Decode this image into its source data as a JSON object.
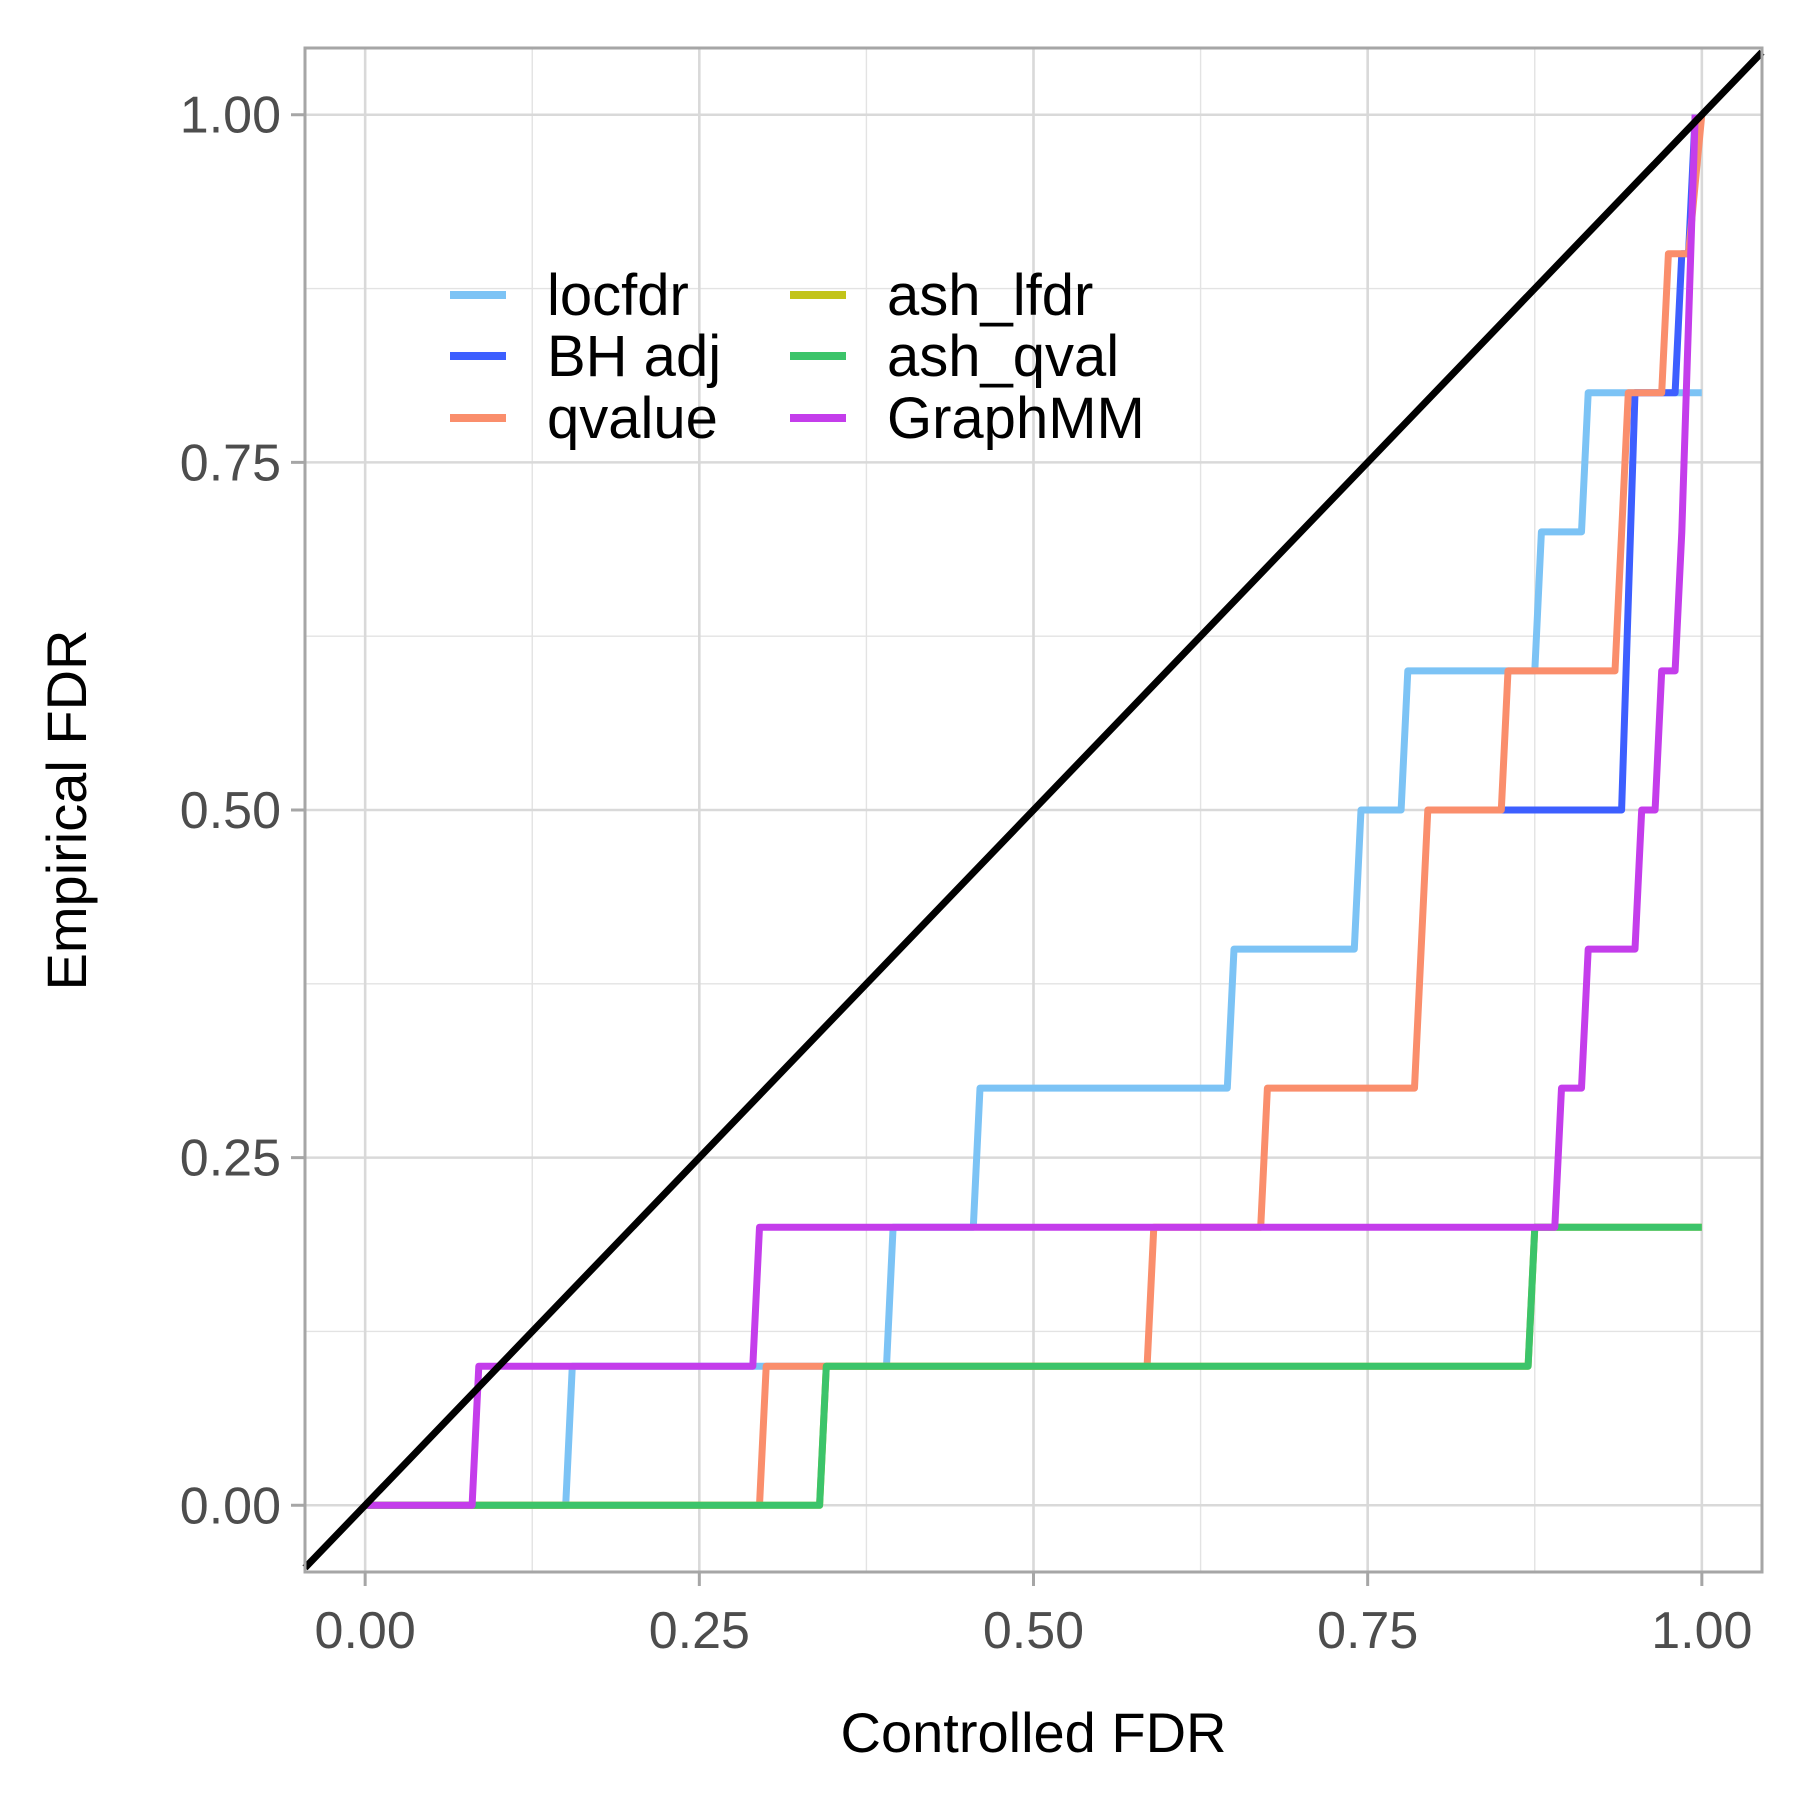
{
  "chart_data": {
    "type": "line",
    "line_shape": "step",
    "xlabel": "Controlled FDR",
    "ylabel": "Empirical FDR",
    "xlim": [
      -0.045,
      1.045
    ],
    "ylim": [
      -0.048,
      1.048
    ],
    "x_ticks": [
      0,
      0.25,
      0.5,
      0.75,
      1.0
    ],
    "x_tick_labels": [
      "0.00",
      "0.25",
      "0.50",
      "0.75",
      "1.00"
    ],
    "y_ticks": [
      0,
      0.25,
      0.5,
      0.75,
      1.0
    ],
    "y_tick_labels": [
      "0.00",
      "0.25",
      "0.50",
      "0.75",
      "1.00"
    ],
    "grid": true,
    "legend_position": "top-left inside, two columns",
    "reference_line": {
      "name": "identity",
      "slope": 1,
      "intercept": 0,
      "color": "#000000"
    },
    "series": [
      {
        "name": "locfdr",
        "color": "#7CC3F5",
        "x": [
          0,
          0.15,
          0.155,
          0.39,
          0.395,
          0.455,
          0.46,
          0.645,
          0.65,
          0.74,
          0.745,
          0.775,
          0.78,
          0.875,
          0.88,
          0.91,
          0.915,
          1.0
        ],
        "y": [
          0,
          0,
          0.1,
          0.1,
          0.2,
          0.2,
          0.3,
          0.3,
          0.4,
          0.4,
          0.5,
          0.5,
          0.6,
          0.6,
          0.7,
          0.7,
          0.8,
          0.8
        ]
      },
      {
        "name": "BH adj",
        "color": "#3D5FFF",
        "x": [
          0.85,
          0.94,
          0.95,
          0.98,
          0.985,
          0.99,
          0.995
        ],
        "y": [
          0.5,
          0.5,
          0.8,
          0.8,
          0.9,
          0.9,
          1.0
        ]
      },
      {
        "name": "qvalue",
        "color": "#FA8E6C",
        "x": [
          0,
          0.295,
          0.3,
          0.585,
          0.59,
          0.67,
          0.675,
          0.785,
          0.795,
          0.85,
          0.855,
          0.935,
          0.945,
          0.97,
          0.975,
          0.99,
          1.0
        ],
        "y": [
          0,
          0,
          0.1,
          0.1,
          0.2,
          0.2,
          0.3,
          0.3,
          0.5,
          0.5,
          0.6,
          0.6,
          0.8,
          0.8,
          0.9,
          0.9,
          1.0
        ]
      },
      {
        "name": "ash_lfdr",
        "color": "#C2C41A",
        "x": [
          0,
          0.34,
          0.345,
          0.87,
          0.875,
          1.0
        ],
        "y": [
          0,
          0,
          0.1,
          0.1,
          0.2,
          0.2
        ]
      },
      {
        "name": "ash_qval",
        "color": "#3CC46A",
        "x": [
          0,
          0.34,
          0.345,
          0.87,
          0.875,
          1.0
        ],
        "y": [
          0,
          0,
          0.1,
          0.1,
          0.2,
          0.2
        ]
      },
      {
        "name": "GraphMM",
        "color": "#C43DEB",
        "x": [
          0,
          0.08,
          0.085,
          0.29,
          0.295,
          0.89,
          0.895,
          0.91,
          0.915,
          0.95,
          0.955,
          0.965,
          0.97,
          0.98,
          0.985,
          0.99,
          0.995
        ],
        "y": [
          0,
          0,
          0.1,
          0.1,
          0.2,
          0.2,
          0.3,
          0.3,
          0.4,
          0.4,
          0.5,
          0.5,
          0.6,
          0.6,
          0.7,
          0.85,
          1.0
        ]
      }
    ]
  }
}
